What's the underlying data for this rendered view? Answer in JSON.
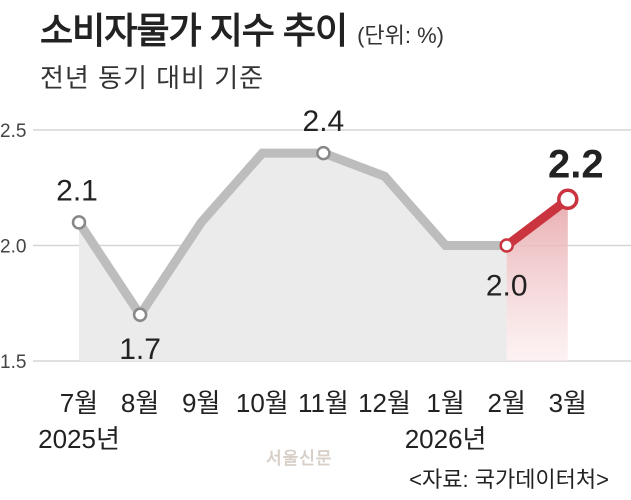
{
  "title": "소비자물가 지수 추이",
  "unit": "(단위: %)",
  "subtitle": "전년 동기 대비 기준",
  "source": "<자료: 국가데이터처>",
  "watermark": "서울신문",
  "chart_data": {
    "type": "line",
    "categories": [
      "7월",
      "8월",
      "9월",
      "10월",
      "11월",
      "12월",
      "1월",
      "2월",
      "3월"
    ],
    "year_labels": [
      {
        "category": "7월",
        "label": "2025년"
      },
      {
        "category": "1월",
        "label": "2026년"
      }
    ],
    "values": [
      2.1,
      1.7,
      2.1,
      2.4,
      2.4,
      2.3,
      2.0,
      2.0,
      2.2
    ],
    "data_labels": [
      {
        "index": 0,
        "text": "2.1"
      },
      {
        "index": 1,
        "text": "1.7"
      },
      {
        "index": 4,
        "text": "2.4"
      },
      {
        "index": 7,
        "text": "2.0"
      },
      {
        "index": 8,
        "text": "2.2",
        "highlight": true
      }
    ],
    "markers": [
      0,
      1,
      4,
      7,
      8
    ],
    "highlight_segment": [
      7,
      8
    ],
    "yticks": [
      "1.5",
      "2.0",
      "2.5"
    ],
    "ylim": [
      1.5,
      2.5
    ],
    "grid": true,
    "colors": {
      "line": "#bdbdbd",
      "area": "#ebebeb",
      "highlight": "#c9343f",
      "grid": "#d6d6d6"
    }
  }
}
